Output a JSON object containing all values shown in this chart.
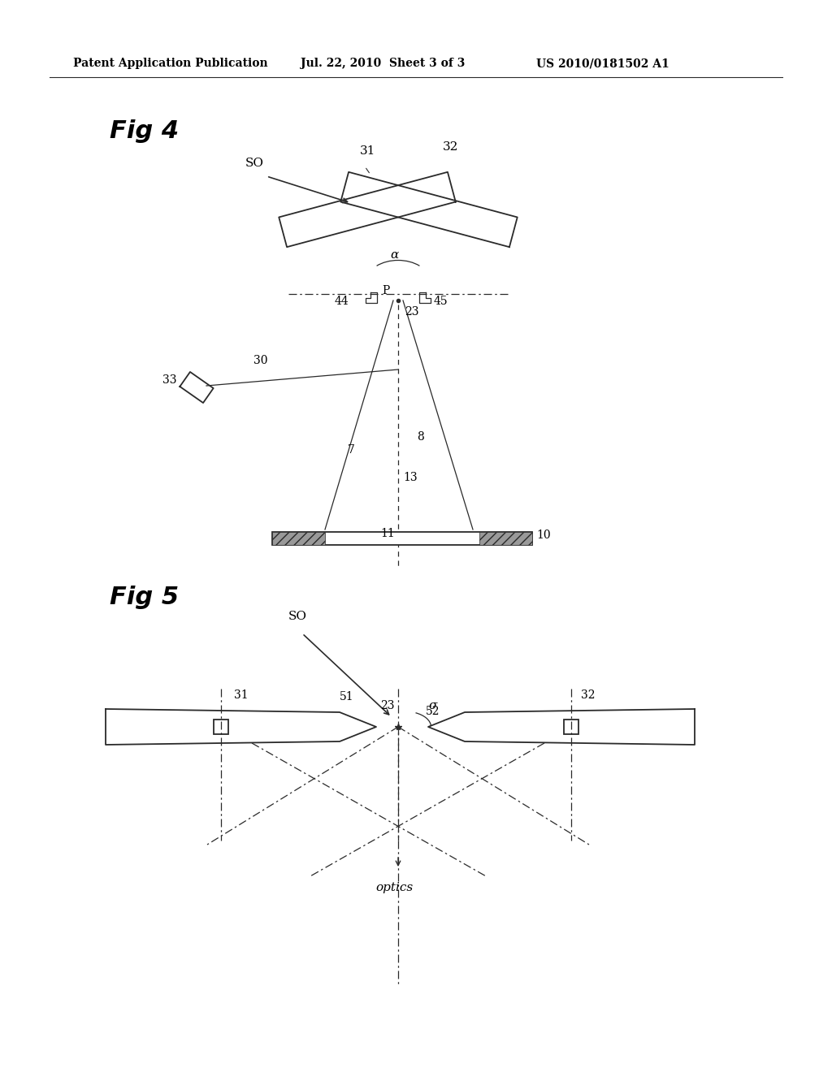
{
  "bg_color": "#ffffff",
  "header_text": "Patent Application Publication",
  "header_date": "Jul. 22, 2010  Sheet 3 of 3",
  "header_patent": "US 2010/0181502 A1",
  "fig4_label": "Fig 4",
  "fig5_label": "Fig 5",
  "line_color": "#2a2a2a",
  "label_fontsize": 11,
  "fig_label_fontsize": 22,
  "header_fontsize": 10
}
